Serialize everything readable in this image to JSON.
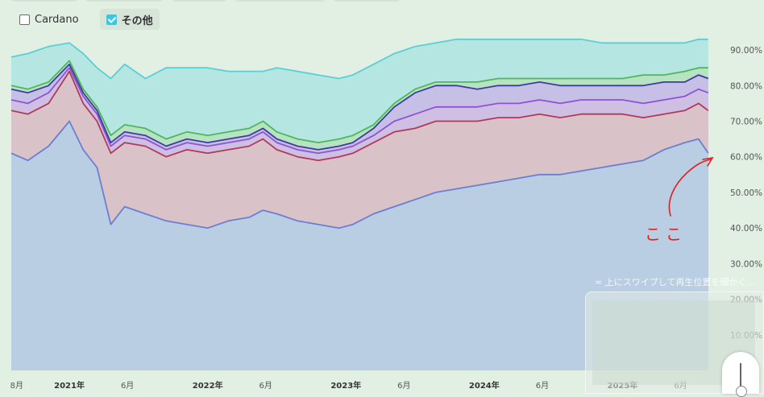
{
  "legend": {
    "items": [
      {
        "label": "Cardano",
        "checked": false
      },
      {
        "label": "その他",
        "checked": true
      }
    ]
  },
  "overlay": {
    "swipe_hint": "≈ 上にスワイプして再生位置を細かく..."
  },
  "annotation": {
    "handwritten": "ここ",
    "color": "#e0201f"
  },
  "chart_data": {
    "type": "area",
    "stacked": true,
    "y_axis_side": "right",
    "ylim": [
      0,
      95
    ],
    "yticks": [
      "10.00%",
      "20.00%",
      "30.00%",
      "40.00%",
      "50.00%",
      "60.00%",
      "70.00%",
      "80.00%",
      "90.00%"
    ],
    "ytick_values": [
      10,
      20,
      30,
      40,
      50,
      60,
      70,
      80,
      90
    ],
    "xlim": [
      2020.58,
      2025.72
    ],
    "xticks": [
      {
        "label": "8月",
        "x": 2020.62,
        "year": false
      },
      {
        "label": "2021年",
        "x": 2021.0,
        "year": true
      },
      {
        "label": "6月",
        "x": 2021.42,
        "year": false
      },
      {
        "label": "2022年",
        "x": 2022.0,
        "year": true
      },
      {
        "label": "6月",
        "x": 2022.42,
        "year": false
      },
      {
        "label": "2023年",
        "x": 2023.0,
        "year": true
      },
      {
        "label": "6月",
        "x": 2023.42,
        "year": false
      },
      {
        "label": "2024年",
        "x": 2024.0,
        "year": true
      },
      {
        "label": "6月",
        "x": 2024.42,
        "year": false
      },
      {
        "label": "2025年",
        "x": 2025.0,
        "year": true
      },
      {
        "label": "6月",
        "x": 2025.42,
        "year": false
      }
    ],
    "x": [
      2020.58,
      2020.7,
      2020.85,
      2021.0,
      2021.1,
      2021.2,
      2021.3,
      2021.4,
      2021.55,
      2021.7,
      2021.85,
      2022.0,
      2022.15,
      2022.3,
      2022.4,
      2022.5,
      2022.65,
      2022.8,
      2022.95,
      2023.05,
      2023.2,
      2023.35,
      2023.5,
      2023.65,
      2023.8,
      2023.95,
      2024.1,
      2024.25,
      2024.4,
      2024.55,
      2024.7,
      2024.85,
      2025.0,
      2025.15,
      2025.3,
      2025.45,
      2025.55,
      2025.62
    ],
    "series": [
      {
        "color": "#6b7fd0",
        "fill": "#b9cde3",
        "values": [
          61,
          59,
          63,
          70,
          62,
          57,
          41,
          46,
          44,
          42,
          41,
          40,
          42,
          43,
          45,
          44,
          42,
          41,
          40,
          41,
          44,
          46,
          48,
          50,
          51,
          52,
          53,
          54,
          55,
          55,
          56,
          57,
          58,
          59,
          62,
          64,
          65,
          61
        ]
      },
      {
        "color": "#b03a5a",
        "fill": "#d9c3c8",
        "values": [
          73,
          72,
          75,
          84,
          75,
          70,
          61,
          64,
          63,
          60,
          62,
          61,
          62,
          63,
          65,
          62,
          60,
          59,
          60,
          61,
          64,
          67,
          68,
          70,
          70,
          70,
          71,
          71,
          72,
          71,
          72,
          72,
          72,
          71,
          72,
          73,
          75,
          73
        ]
      },
      {
        "color": "#8f52d6",
        "fill": "#cfc0e3",
        "values": [
          76,
          75,
          78,
          85,
          77,
          72,
          63,
          66,
          65,
          62,
          64,
          63,
          64,
          65,
          67,
          64,
          62,
          61,
          62,
          63,
          66,
          70,
          72,
          74,
          74,
          74,
          75,
          75,
          76,
          75,
          76,
          76,
          76,
          75,
          76,
          77,
          79,
          78
        ]
      },
      {
        "color": "#3f3c9e",
        "fill": "#c6c0e6",
        "values": [
          79,
          78,
          80,
          86,
          78,
          73,
          64,
          67,
          66,
          63,
          65,
          64,
          65,
          66,
          68,
          65,
          63,
          62,
          63,
          64,
          68,
          74,
          78,
          80,
          80,
          79,
          80,
          80,
          81,
          80,
          80,
          80,
          80,
          80,
          81,
          81,
          83,
          82
        ]
      },
      {
        "color": "#4cb85a",
        "fill": "#b8e3c2",
        "values": [
          80,
          79,
          81,
          87,
          79,
          74,
          66,
          69,
          68,
          65,
          67,
          66,
          67,
          68,
          70,
          67,
          65,
          64,
          65,
          66,
          69,
          75,
          79,
          81,
          81,
          81,
          82,
          82,
          82,
          82,
          82,
          82,
          82,
          83,
          83,
          84,
          85,
          85
        ]
      },
      {
        "color": "#59cfd6",
        "fill": "#b6e6e2",
        "values": [
          88,
          89,
          91,
          92,
          89,
          85,
          82,
          86,
          82,
          85,
          85,
          85,
          84,
          84,
          84,
          85,
          84,
          83,
          82,
          83,
          86,
          89,
          91,
          92,
          93,
          93,
          93,
          93,
          93,
          93,
          93,
          92,
          92,
          92,
          92,
          92,
          93,
          93
        ]
      }
    ]
  }
}
